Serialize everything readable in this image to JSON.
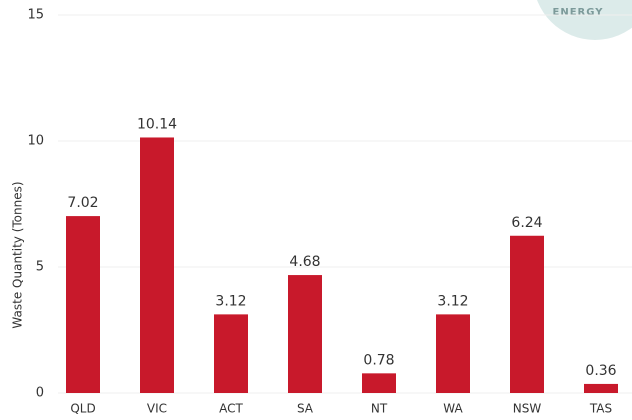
{
  "chart_data": {
    "type": "bar",
    "ylabel": "Waste Quantity (Tonnes)",
    "annotation": "ENERGY",
    "categories": [
      "QLD",
      "VIC",
      "ACT",
      "SA",
      "NT",
      "WA",
      "NSW",
      "TAS"
    ],
    "values": [
      7.02,
      10.14,
      3.12,
      4.68,
      0.78,
      3.12,
      6.24,
      0.36
    ],
    "color": "#c8192b",
    "ylim": [
      0,
      15
    ],
    "yticks": [
      0,
      5,
      10,
      15
    ],
    "grid": true
  }
}
